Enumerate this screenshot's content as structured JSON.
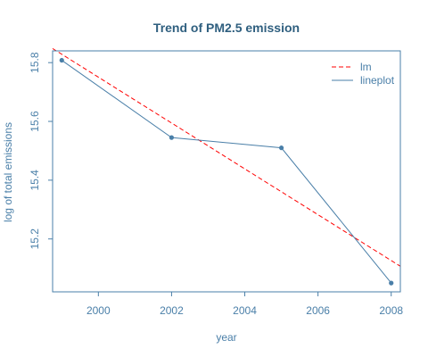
{
  "chart_data": {
    "type": "line",
    "title": "Trend of PM2.5 emission",
    "xlabel": "year",
    "ylabel": "log of total emissions",
    "xlim": [
      1998.75,
      2008.25
    ],
    "ylim": [
      15.02,
      15.84
    ],
    "xticks": [
      2000,
      2002,
      2004,
      2006,
      2008
    ],
    "yticks": [
      15.2,
      15.4,
      15.6,
      15.8
    ],
    "ytick_labels": [
      "15.2",
      "15.4",
      "15.6",
      "15.8"
    ],
    "grid": false,
    "legend_position": "top-right",
    "series": [
      {
        "name": "lm",
        "style": "dashed",
        "color": "#ff0000",
        "x": [
          1998.75,
          2008.25
        ],
        "y": [
          15.848,
          15.107
        ]
      },
      {
        "name": "lineplot",
        "style": "solid-with-points",
        "color": "#4a7fa8",
        "x": [
          1999,
          2002,
          2005,
          2008
        ],
        "y": [
          15.808,
          15.545,
          15.51,
          15.05
        ]
      }
    ]
  }
}
